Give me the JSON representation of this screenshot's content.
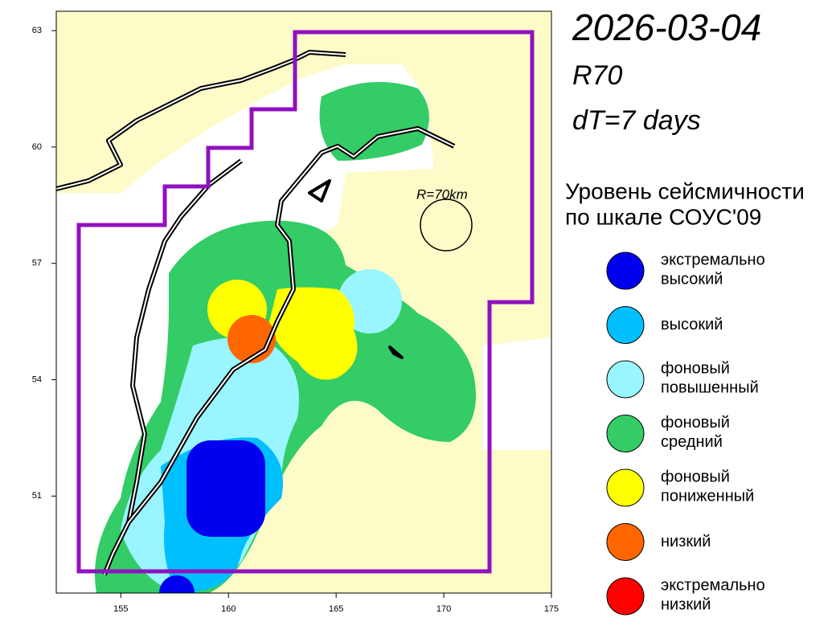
{
  "header": {
    "date": "2026-03-04",
    "model": "R70",
    "window": "dT=7 days"
  },
  "map": {
    "xlim": [
      152,
      175
    ],
    "ylim": [
      48.5,
      63.5
    ],
    "xticks": [
      155,
      160,
      165,
      170,
      175
    ],
    "yticks": [
      51,
      54,
      57,
      60,
      63
    ],
    "radius_label": "R=70km"
  },
  "legend": {
    "title": [
      "Уровень сейсмичности",
      "по шкале СОУС'09"
    ],
    "items": [
      {
        "label": [
          "экстремально",
          "высокий"
        ],
        "color": "#0000ee"
      },
      {
        "label": [
          "высокий"
        ],
        "color": "#00bfff"
      },
      {
        "label": [
          "фоновый",
          "повышенный"
        ],
        "color": "#99f5ff"
      },
      {
        "label": [
          "фоновый",
          "средний"
        ],
        "color": "#33cc66"
      },
      {
        "label": [
          "фоновый",
          "пониженный"
        ],
        "color": "#ffff00"
      },
      {
        "label": [
          "низкий"
        ],
        "color": "#ff6600"
      },
      {
        "label": [
          "экстремально",
          "низкий"
        ],
        "color": "#ff0000"
      }
    ]
  }
}
